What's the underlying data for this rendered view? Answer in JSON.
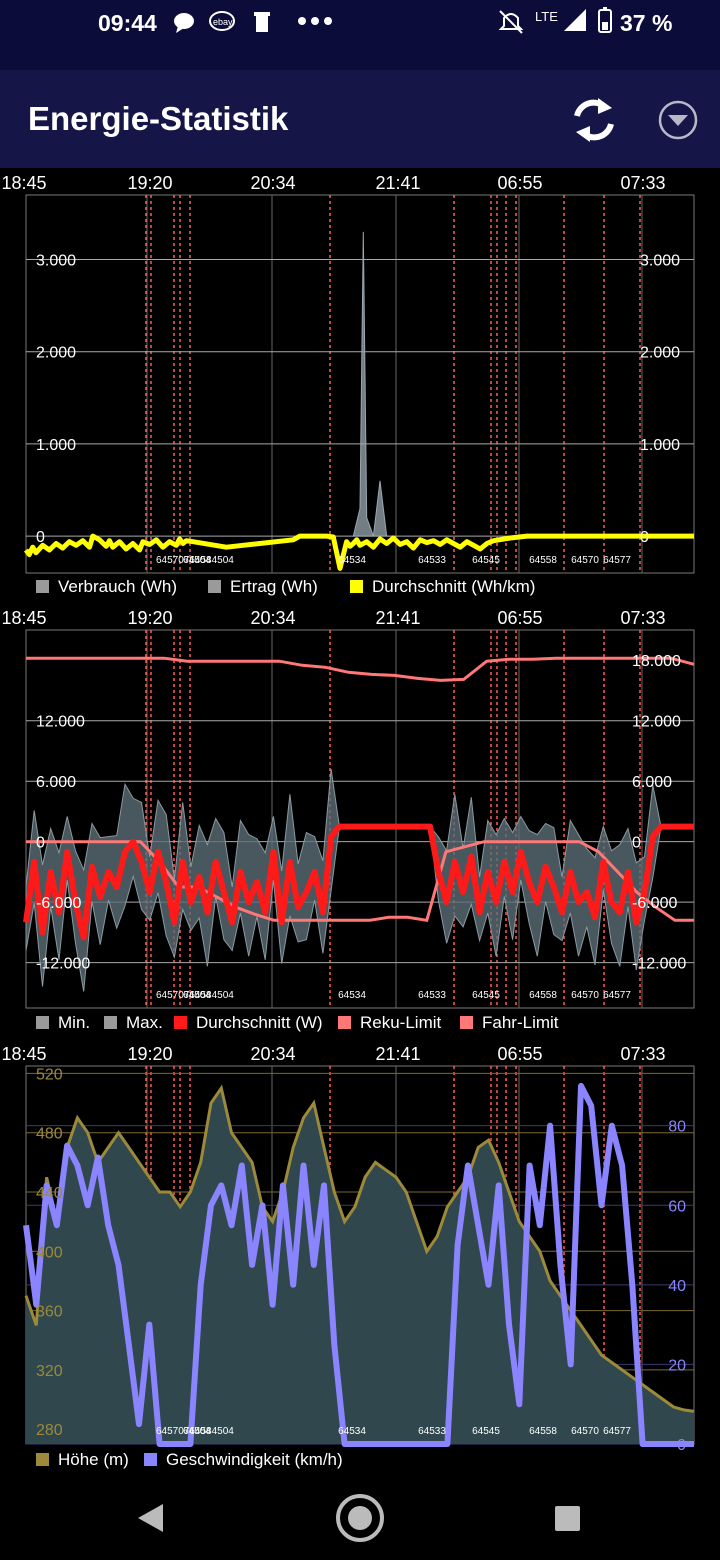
{
  "status_bar": {
    "time": "09:44",
    "network": "LTE",
    "battery": "37 %",
    "icons": [
      "chat-bubble-icon",
      "ebay-icon",
      "trash-icon",
      "more-dots-icon",
      "mute-icon",
      "signal-icon",
      "battery-icon"
    ]
  },
  "app_bar": {
    "title": "Energie-Statistik",
    "refresh_icon": "refresh-icon",
    "dropdown_icon": "dropdown-icon"
  },
  "time_axis": [
    "18:45",
    "19:20",
    "20:34",
    "21:41",
    "06:55",
    "07:33"
  ],
  "trip_labels": [
    "64504",
    "64534",
    "64533",
    "64545",
    "64558",
    "64570",
    "64577"
  ],
  "chart_data": [
    {
      "type": "area",
      "left_ticks": [
        "3.000",
        "2.000",
        "1.000",
        "0"
      ],
      "right_ticks": [
        "3.000",
        "2.000",
        "1.000",
        "0"
      ],
      "ylim": [
        -400,
        3700
      ],
      "legend": [
        {
          "label": "Verbrauch (Wh)",
          "color": "#9a9a9a"
        },
        {
          "label": "Ertrag (Wh)",
          "color": "#9a9a9a"
        },
        {
          "label": "Durchschnitt (Wh/km)",
          "color": "#ffff00"
        }
      ],
      "series": [
        {
          "name": "Durchschnitt (Wh/km)",
          "color": "#ffff00",
          "x": [
            0,
            0.01,
            0.02,
            0.03,
            0.05,
            0.07,
            0.09,
            0.11,
            0.13,
            0.15,
            0.17,
            0.19,
            0.2,
            0.22,
            0.24,
            0.25,
            0.26,
            0.28,
            0.3,
            0.32,
            0.34,
            0.35,
            0.37,
            0.39,
            0.41,
            0.43,
            0.45,
            0.46,
            0.47,
            0.48,
            0.5,
            0.6,
            0.7,
            0.8,
            0.81,
            0.82,
            0.83,
            0.84,
            0.85,
            0.86,
            0.87,
            0.88,
            0.89,
            0.9,
            0.92,
            0.94,
            0.96,
            0.97,
            0.98,
            0.99,
            1.0,
            1.02,
            1.04,
            1.06,
            1.08,
            1.1,
            1.12,
            1.14,
            1.16,
            1.18,
            1.2,
            1.22,
            1.24,
            1.26,
            1.28,
            1.3,
            1.32,
            1.34,
            1.36,
            1.38,
            1.4,
            1.45,
            1.5,
            1.6,
            1.7,
            1.8,
            1.9,
            2.0
          ],
          "values": [
            -150,
            -200,
            -120,
            -180,
            -100,
            -150,
            -80,
            -130,
            -60,
            -100,
            -50,
            -120,
            0,
            -40,
            -110,
            -50,
            -120,
            -60,
            -140,
            -80,
            -150,
            -60,
            -90,
            -40,
            -120,
            -60,
            -100,
            -30,
            -80,
            -50,
            -60,
            -120,
            -80,
            -40,
            -20,
            0,
            0,
            0,
            0,
            0,
            0,
            0,
            0,
            0,
            -10,
            -350,
            -60,
            -110,
            -80,
            -40,
            -100,
            -60,
            -120,
            -30,
            -80,
            -20,
            -90,
            -60,
            -130,
            -40,
            -70,
            -50,
            -90,
            -40,
            -80,
            -120,
            -60,
            -100,
            -140,
            -80,
            -50,
            -20,
            0,
            0,
            0,
            0,
            0,
            0
          ]
        },
        {
          "name": "Verbrauch (Wh)",
          "color": "#9a9a9a",
          "x": [
            0.98,
            1.0,
            1.01,
            1.02,
            1.04,
            1.06,
            1.08,
            1.1
          ],
          "values": [
            0,
            300,
            3300,
            200,
            0,
            600,
            0,
            0
          ]
        }
      ]
    },
    {
      "type": "line",
      "left_ticks": [
        "12.000",
        "6.000",
        "0",
        "-6.000",
        "-12.000"
      ],
      "right_ticks": [
        "18.000",
        "12.000",
        "6.000",
        "0",
        "-6.000",
        "-12.000"
      ],
      "ylim": [
        -16500,
        21000
      ],
      "legend": [
        {
          "label": "Min.",
          "color": "#9a9a9a"
        },
        {
          "label": "Max.",
          "color": "#9a9a9a"
        },
        {
          "label": "Durchschnitt (W)",
          "color": "#ff1a1a"
        },
        {
          "label": "Reku-Limit",
          "color": "#ff7777"
        },
        {
          "label": "Fahr-Limit",
          "color": "#ff7777"
        }
      ],
      "series": [
        {
          "name": "Durchschnitt (W)",
          "color": "#ff1a1a",
          "values": [
            -8000,
            -2000,
            -9000,
            -3000,
            -7000,
            -1000,
            -6000,
            -9500,
            -2500,
            -5500,
            -3000,
            -4500,
            -1000,
            0,
            -2000,
            -5000,
            -1000,
            -4000,
            -8000,
            -2000,
            -6000,
            -3500,
            -7000,
            -2000,
            -5000,
            -8000,
            -3000,
            -6000,
            -4000,
            -7000,
            -1000,
            -8000,
            -2000,
            -6500,
            -5000,
            -3000,
            -7000,
            500,
            1500,
            1500,
            1500,
            1500,
            1500,
            1500,
            1500,
            1500,
            1500,
            1500,
            1500,
            1500,
            -3000,
            -6000,
            -2000,
            -5000,
            -1500,
            -7000,
            -3000,
            -6000,
            -2000,
            -5000,
            -1000,
            -4000,
            -6000,
            -2500,
            -4500,
            -7000,
            -3000,
            -6000,
            -5000,
            -7500,
            -2000,
            -6000,
            -7000,
            -3000,
            -8000,
            -5000,
            500,
            1500,
            1500,
            1500,
            1500,
            1500
          ]
        },
        {
          "name": "Reku-Limit",
          "color": "#ff7777",
          "values": [
            18200,
            18200,
            18200,
            18200,
            18200,
            18200,
            18200,
            17900,
            17900,
            17900,
            17900,
            17900,
            17500,
            17300,
            16800,
            16600,
            16500,
            16200,
            16000,
            16100,
            17900,
            18100,
            18100,
            18200,
            18200,
            18200,
            18200,
            18200,
            18200,
            17600
          ]
        },
        {
          "name": "Fahr-Limit",
          "color": "#ff7777",
          "values": [
            0,
            0,
            0,
            0,
            0,
            0,
            0,
            -2000,
            -4500,
            -4500,
            -5500,
            -6500,
            -7200,
            -7800,
            -7800,
            -7800,
            -7800,
            -7800,
            -7800,
            -7500,
            -7500,
            -7800,
            -1000,
            -500,
            0,
            0,
            0,
            0,
            0,
            0,
            -1000,
            -3000,
            -5000,
            -6500,
            -7800,
            -7800
          ]
        }
      ]
    },
    {
      "type": "area",
      "left_ticks": [
        "520",
        "480",
        "440",
        "400",
        "360",
        "320",
        "280"
      ],
      "right_ticks": [
        "80",
        "60",
        "40",
        "20",
        "0"
      ],
      "ylim_left": [
        270,
        525
      ],
      "ylim_right": [
        0,
        95
      ],
      "legend": [
        {
          "label": "Höhe (m)",
          "color": "#9c8a3a"
        },
        {
          "label": "Geschwindigkeit (km/h)",
          "color": "#8a84ff"
        }
      ],
      "series": [
        {
          "name": "Höhe (m)",
          "color": "#9c8a3a",
          "values": [
            370,
            350,
            450,
            420,
            470,
            490,
            480,
            460,
            470,
            480,
            470,
            460,
            450,
            440,
            440,
            430,
            440,
            460,
            500,
            510,
            480,
            470,
            460,
            430,
            420,
            440,
            470,
            490,
            500,
            470,
            440,
            420,
            430,
            450,
            460,
            455,
            450,
            440,
            420,
            400,
            410,
            430,
            440,
            450,
            470,
            475,
            460,
            440,
            420,
            410,
            400,
            380,
            370,
            360,
            350,
            340,
            330,
            325,
            320,
            315,
            310,
            305,
            300,
            295,
            293,
            292
          ]
        },
        {
          "name": "Geschwindigkeit (km/h)",
          "color": "#8a84ff",
          "values": [
            55,
            35,
            65,
            55,
            75,
            70,
            60,
            72,
            55,
            45,
            25,
            5,
            30,
            0,
            0,
            0,
            0,
            40,
            60,
            65,
            55,
            70,
            45,
            60,
            35,
            65,
            40,
            70,
            45,
            65,
            25,
            0,
            0,
            0,
            0,
            0,
            0,
            0,
            0,
            0,
            0,
            0,
            50,
            70,
            55,
            40,
            65,
            30,
            10,
            70,
            55,
            80,
            45,
            20,
            90,
            85,
            60,
            80,
            70,
            40,
            0,
            0,
            0,
            0,
            0,
            0
          ]
        }
      ]
    }
  ],
  "legends": {
    "c1": [
      "Verbrauch (Wh)",
      "Ertrag (Wh)",
      "Durchschnitt (Wh/km)"
    ],
    "c2": [
      "Min.",
      "Max.",
      "Durchschnitt (W)",
      "Reku-Limit",
      "Fahr-Limit"
    ],
    "c3": [
      "Höhe (m)",
      "Geschwindigkeit (km/h)"
    ]
  },
  "nav_bar": {
    "back_icon": "back-icon",
    "home_icon": "home-icon",
    "recents_icon": "recents-icon"
  }
}
